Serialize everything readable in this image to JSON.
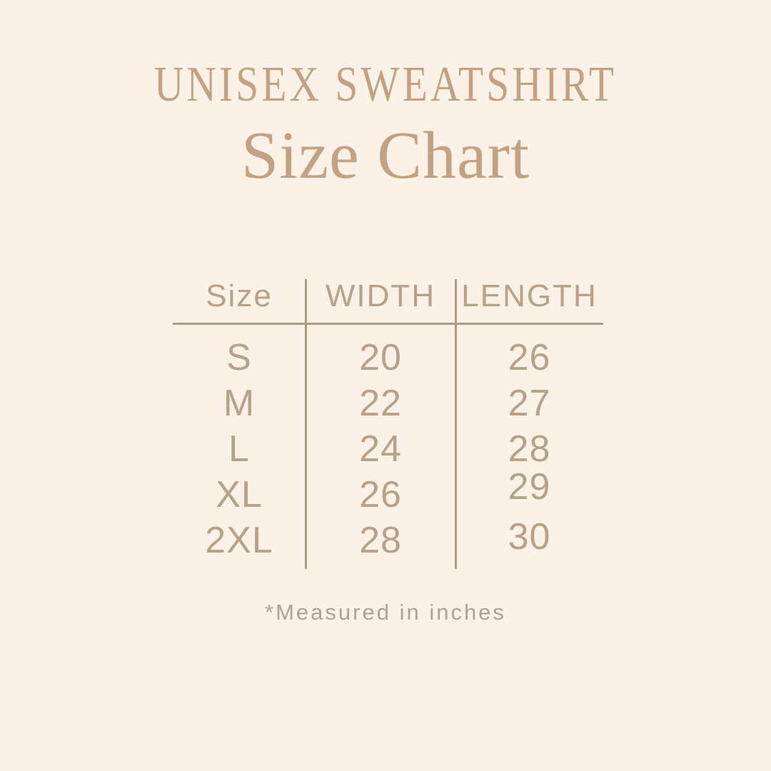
{
  "page": {
    "background_color": "#fbf1e6",
    "accent_color": "#c2a283",
    "line_color": "#b09a84"
  },
  "header": {
    "title": "UNISEX SWEATSHIRT",
    "subtitle": "Size Chart"
  },
  "table": {
    "columns": [
      "Size",
      "WIDTH",
      "LENGTH"
    ],
    "rows": [
      {
        "size": "S",
        "width": "20",
        "length": "26"
      },
      {
        "size": "M",
        "width": "22",
        "length": "27"
      },
      {
        "size": "L",
        "width": "24",
        "length": "28"
      },
      {
        "size": "XL",
        "width": "26",
        "length": "29"
      },
      {
        "size": "2XL",
        "width": "28",
        "length": "30"
      }
    ]
  },
  "footnote": "*Measured in inches"
}
